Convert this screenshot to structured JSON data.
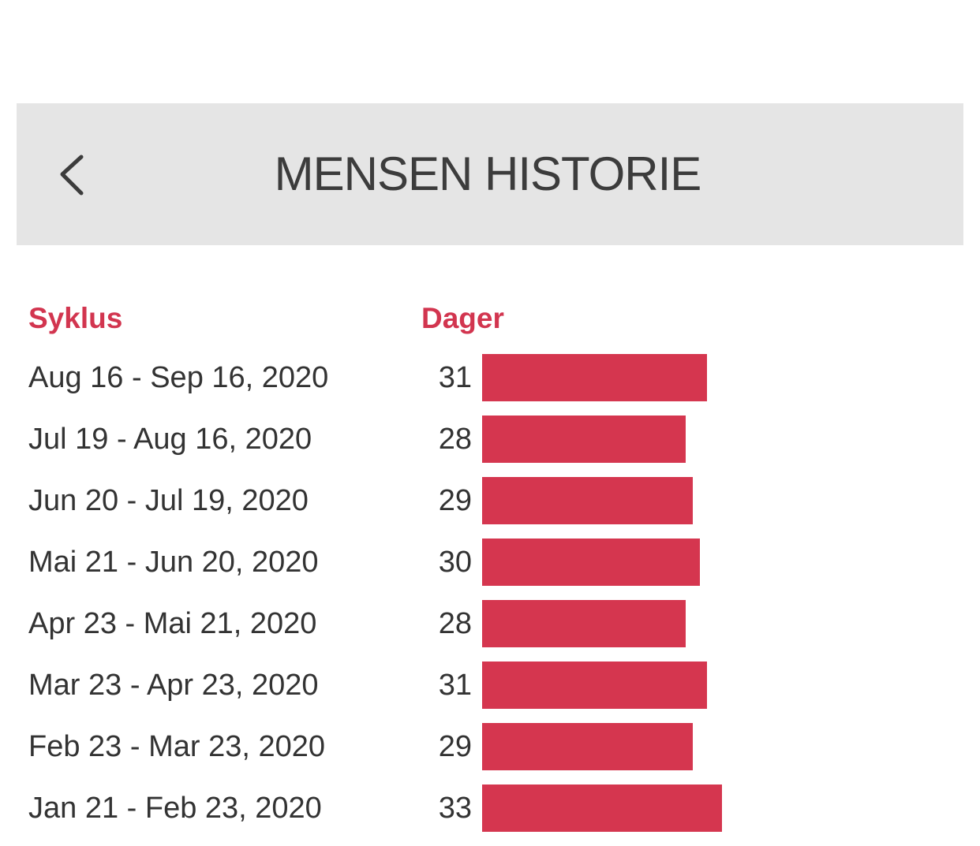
{
  "header": {
    "title": "MENSEN HISTORIE",
    "back_icon": "chevron-left-icon"
  },
  "table": {
    "cycle_header": "Syklus",
    "days_header": "Dager",
    "accent_color": "#d5364f",
    "rows": [
      {
        "range": "Aug 16 - Sep 16, 2020",
        "days": "31"
      },
      {
        "range": "Jul 19 - Aug 16, 2020",
        "days": "28"
      },
      {
        "range": "Jun 20 - Jul 19, 2020",
        "days": "29"
      },
      {
        "range": "Mai 21 - Jun 20, 2020",
        "days": "30"
      },
      {
        "range": "Apr 23 - Mai 21, 2020",
        "days": "28"
      },
      {
        "range": "Mar 23 - Apr 23, 2020",
        "days": "31"
      },
      {
        "range": "Feb 23 - Mar 23, 2020",
        "days": "29"
      },
      {
        "range": "Jan 21 - Feb 23, 2020",
        "days": "33"
      }
    ]
  }
}
